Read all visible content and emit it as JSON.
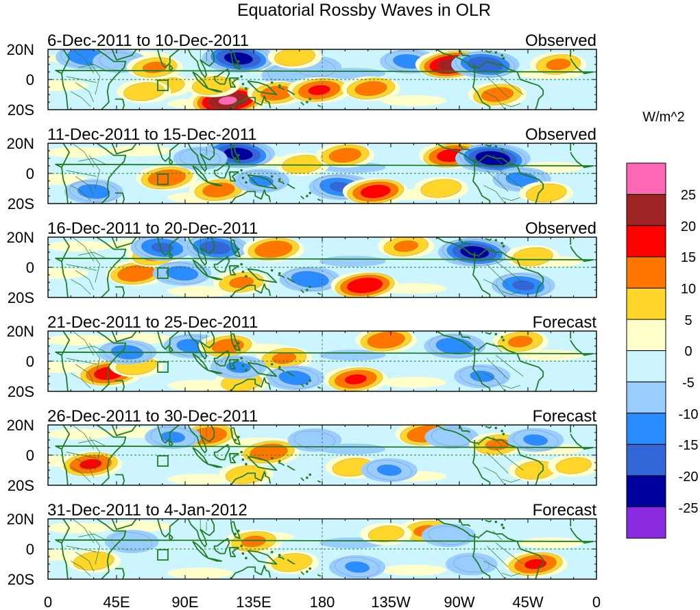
{
  "title": "Equatorial Rossby Waves in OLR",
  "units": "W/m^2",
  "lat_labels": [
    "20N",
    "0",
    "20S"
  ],
  "lon_labels": [
    "0",
    "45E",
    "90E",
    "135E",
    "180",
    "135W",
    "90W",
    "45W",
    "0"
  ],
  "panels": [
    {
      "dates": "6-Dec-2011 to 10-Dec-2011",
      "type": "Observed"
    },
    {
      "dates": "11-Dec-2011 to 15-Dec-2011",
      "type": "Observed"
    },
    {
      "dates": "16-Dec-2011 to 20-Dec-2011",
      "type": "Observed"
    },
    {
      "dates": "21-Dec-2011 to 25-Dec-2011",
      "type": "Forecast"
    },
    {
      "dates": "26-Dec-2011 to 30-Dec-2011",
      "type": "Forecast"
    },
    {
      "dates": "31-Dec-2011 to 4-Jan-2012",
      "type": "Forecast"
    }
  ],
  "colorbar": {
    "labels": [
      "25",
      "20",
      "15",
      "10",
      "5",
      "0",
      "-5",
      "-10",
      "-15",
      "-20",
      "-25"
    ],
    "colors": [
      "#ff66b3",
      "#9e2323",
      "#ff0000",
      "#ff7700",
      "#ffd52a",
      "#ffffcc",
      "#ccf5ff",
      "#99ccff",
      "#2b8cff",
      "#3366d6",
      "#00009e",
      "#8a2be2"
    ]
  },
  "anomalies": [
    [
      [
        -0.45,
        25,
        15
      ],
      [
        -0.3,
        47,
        12
      ],
      [
        0.25,
        78,
        -4
      ],
      [
        0.35,
        70,
        8
      ],
      [
        0.8,
        118,
        -14
      ],
      [
        0.3,
        108,
        -4
      ],
      [
        -0.7,
        125,
        14
      ],
      [
        -0.3,
        158,
        3
      ],
      [
        -0.3,
        175,
        8
      ],
      [
        0.4,
        150,
        -9
      ],
      [
        0.5,
        178,
        -7
      ],
      [
        0.3,
        162,
        15
      ],
      [
        0.4,
        212,
        -6
      ],
      [
        -0.4,
        237,
        12
      ],
      [
        0.7,
        265,
        10
      ],
      [
        -0.6,
        287,
        10
      ],
      [
        0.4,
        295,
        -10
      ],
      [
        0.35,
        335,
        10
      ],
      [
        0.3,
        63,
        -8
      ]
    ],
    [
      [
        -0.4,
        30,
        -12
      ],
      [
        0.45,
        78,
        -3
      ],
      [
        -0.7,
        125,
        13
      ],
      [
        0.4,
        112,
        -11
      ],
      [
        -0.3,
        100,
        10
      ],
      [
        0.3,
        167,
        6
      ],
      [
        -0.35,
        140,
        -5
      ],
      [
        -0.5,
        192,
        -9
      ],
      [
        0.55,
        215,
        -12
      ],
      [
        0.4,
        195,
        12
      ],
      [
        0.55,
        265,
        12
      ],
      [
        -0.75,
        292,
        10
      ],
      [
        0.3,
        258,
        -10
      ],
      [
        -0.4,
        311,
        -4
      ],
      [
        0.3,
        327,
        -13
      ]
    ],
    [
      [
        0.45,
        58,
        -4
      ],
      [
        0.35,
        70,
        8
      ],
      [
        -0.5,
        75,
        13
      ],
      [
        -0.55,
        110,
        13
      ],
      [
        -0.4,
        88,
        -4
      ],
      [
        0.45,
        148,
        12
      ],
      [
        0.35,
        127,
        -10
      ],
      [
        -0.45,
        172,
        -8
      ],
      [
        0.6,
        208,
        -12
      ],
      [
        0.35,
        235,
        14
      ],
      [
        -0.7,
        280,
        10
      ],
      [
        0.3,
        318,
        7
      ],
      [
        -0.5,
        312,
        -12
      ]
    ],
    [
      [
        0.55,
        40,
        -8
      ],
      [
        0.3,
        58,
        -3
      ],
      [
        -0.4,
        52,
        6
      ],
      [
        -0.4,
        95,
        10
      ],
      [
        0.4,
        118,
        10
      ],
      [
        0.35,
        155,
        2
      ],
      [
        0.5,
        202,
        -12
      ],
      [
        0.45,
        222,
        14
      ],
      [
        -0.45,
        267,
        10
      ],
      [
        0.35,
        310,
        13
      ],
      [
        -0.35,
        285,
        -10
      ],
      [
        -0.4,
        162,
        -11
      ],
      [
        0.3,
        127,
        -14
      ],
      [
        -0.35,
        125,
        -4
      ]
    ],
    [
      [
        0.5,
        28,
        -6
      ],
      [
        0.45,
        105,
        13
      ],
      [
        -0.35,
        82,
        12
      ],
      [
        0.3,
        130,
        -13
      ],
      [
        0.45,
        145,
        2
      ],
      [
        -0.3,
        175,
        10
      ],
      [
        0.3,
        200,
        -8
      ],
      [
        0.45,
        248,
        14
      ],
      [
        -0.3,
        265,
        12
      ],
      [
        0.35,
        295,
        7
      ],
      [
        -0.35,
        224,
        -10
      ],
      [
        0.3,
        320,
        -10
      ],
      [
        -0.35,
        320,
        10
      ],
      [
        0.25,
        345,
        -7
      ]
    ],
    [
      [
        0.3,
        30,
        -8
      ],
      [
        -0.3,
        55,
        5
      ],
      [
        0.35,
        135,
        5
      ],
      [
        0.3,
        160,
        -9
      ],
      [
        -0.35,
        203,
        -12
      ],
      [
        0.35,
        248,
        12
      ],
      [
        0.5,
        320,
        -10
      ],
      [
        -0.3,
        263,
        9
      ],
      [
        -0.25,
        278,
        -10
      ],
      [
        0.25,
        222,
        10
      ]
    ]
  ]
}
